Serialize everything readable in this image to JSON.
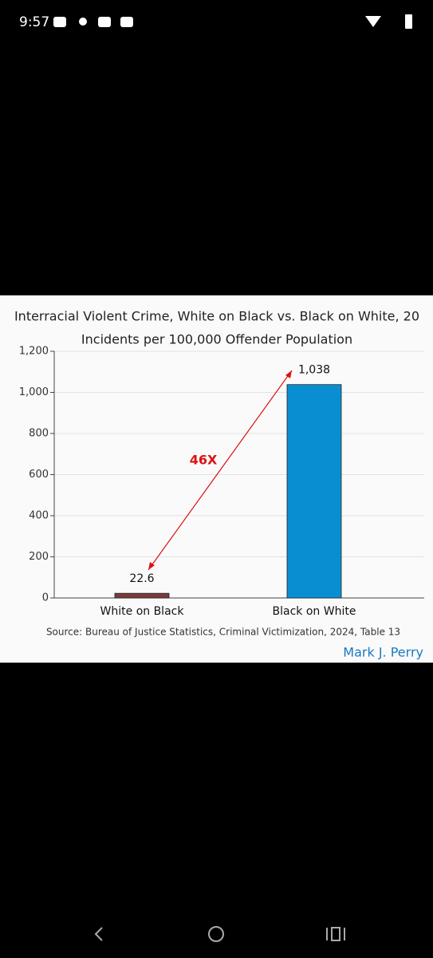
{
  "status_bar": {
    "time": "9:57"
  },
  "chart_data": {
    "type": "bar",
    "title": "Interracial Violent Crime, White on Black vs. Black on White, 20",
    "subtitle": "Incidents per 100,000 Offender Population",
    "categories": [
      "White on Black",
      "Black on White"
    ],
    "values": [
      22.6,
      1038
    ],
    "value_labels": [
      "22.6",
      "1,038"
    ],
    "colors": [
      "#7a3b3b",
      "#0a8ed2"
    ],
    "ylim": [
      0,
      1200
    ],
    "yticks": [
      0,
      200,
      400,
      600,
      800,
      {
        "value": 1000,
        "label": "1,000"
      },
      {
        "value": 1200,
        "label": "1,200"
      }
    ],
    "grid": true,
    "annotation": "46X",
    "source": "Source: Bureau of Justice Statistics, Criminal Victimization, 2024, Table 13",
    "author": "Mark J. Perry"
  }
}
